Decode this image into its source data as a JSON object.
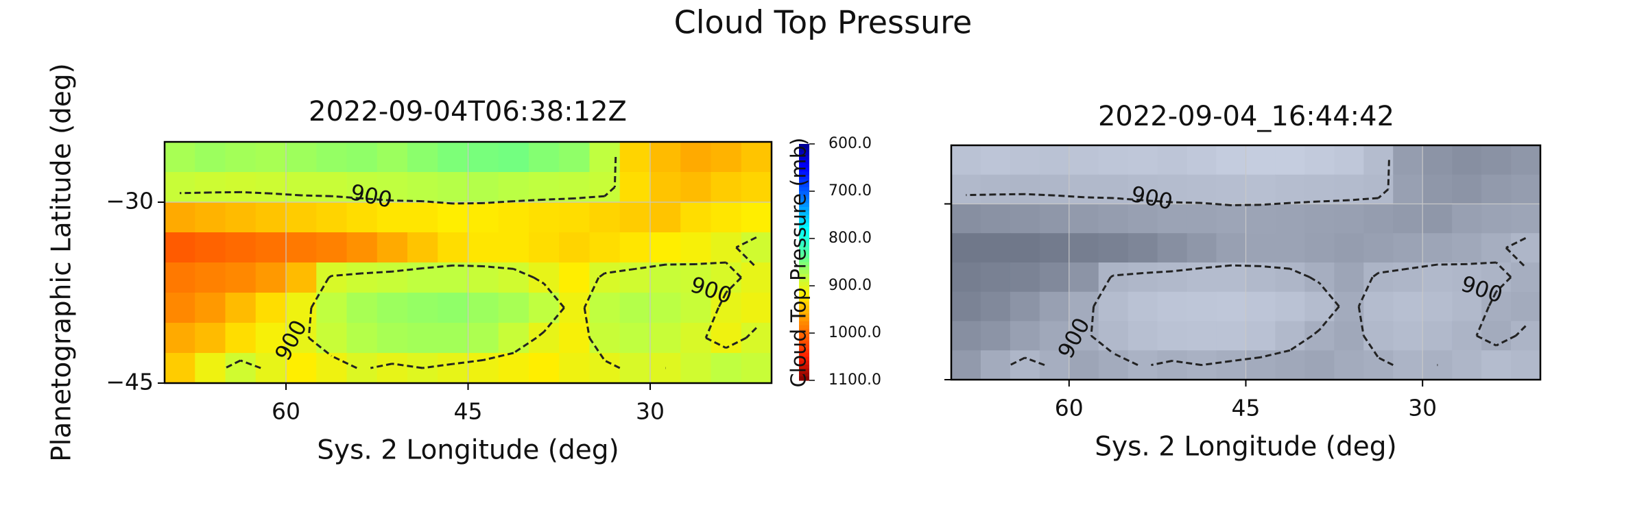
{
  "title": "Cloud Top Pressure",
  "chart_data": [
    {
      "type": "heatmap",
      "title": "2022-09-04T06:38:12Z",
      "xlabel": "Sys. 2 Longitude (deg)",
      "ylabel": "Planetographic Latitude (deg)",
      "xlim": [
        70,
        20
      ],
      "ylim": [
        -45,
        -25
      ],
      "xticks": [
        60,
        45,
        30
      ],
      "yticks": [
        {
          "value": -30,
          "label": "−30"
        },
        {
          "value": -45,
          "label": "−45"
        }
      ],
      "grid": true,
      "colormap": "jet_r",
      "contour_levels": [
        900
      ],
      "contour_color": "#222222",
      "colorbar": {
        "label": "Cloud Top Pressure (mb)",
        "lim": [
          600,
          1100
        ],
        "ticks": [
          {
            "value": 600,
            "label": "600.0"
          },
          {
            "value": 700,
            "label": "700.0"
          },
          {
            "value": 800,
            "label": "800.0"
          },
          {
            "value": 900,
            "label": "900.0"
          },
          {
            "value": 1000,
            "label": "1000.0"
          },
          {
            "value": 1100,
            "label": "1100.0"
          }
        ]
      },
      "values": [
        [
          870,
          865,
          868,
          870,
          866,
          862,
          860,
          865,
          858,
          852,
          850,
          848,
          855,
          860,
          880,
          935,
          950,
          960,
          955,
          945
        ],
        [
          885,
          888,
          890,
          888,
          885,
          885,
          882,
          880,
          878,
          876,
          875,
          878,
          880,
          882,
          885,
          930,
          945,
          950,
          940,
          935
        ],
        [
          960,
          955,
          950,
          945,
          940,
          935,
          930,
          925,
          925,
          920,
          922,
          925,
          928,
          930,
          935,
          940,
          945,
          930,
          925,
          920
        ],
        [
          1010,
          1005,
          1000,
          995,
          990,
          985,
          975,
          960,
          945,
          930,
          925,
          925,
          930,
          935,
          930,
          925,
          920,
          915,
          905,
          890
        ],
        [
          990,
          985,
          980,
          970,
          950,
          895,
          888,
          885,
          880,
          880,
          885,
          890,
          905,
          920,
          895,
          890,
          885,
          888,
          895,
          905
        ],
        [
          980,
          970,
          950,
          930,
          910,
          880,
          870,
          865,
          862,
          860,
          865,
          870,
          880,
          910,
          880,
          875,
          878,
          885,
          905,
          910
        ],
        [
          960,
          950,
          930,
          915,
          905,
          885,
          875,
          870,
          868,
          868,
          872,
          885,
          905,
          915,
          885,
          880,
          885,
          895,
          910,
          895
        ],
        [
          940,
          910,
          890,
          905,
          920,
          910,
          898,
          905,
          900,
          905,
          910,
          915,
          920,
          910,
          905,
          895,
          900,
          890,
          880,
          885
        ]
      ]
    },
    {
      "type": "image",
      "title": "2022-09-04_16:44:42",
      "xlabel": "Sys. 2 Longitude (deg)",
      "xlim": [
        70,
        20
      ],
      "ylim": [
        -45,
        -25
      ],
      "xticks": [
        60,
        45,
        30
      ],
      "yticks": [
        -30,
        -45
      ],
      "show_ytick_labels": false,
      "grid": true,
      "contour_levels": [
        900
      ],
      "contour_color": "#222222"
    }
  ]
}
